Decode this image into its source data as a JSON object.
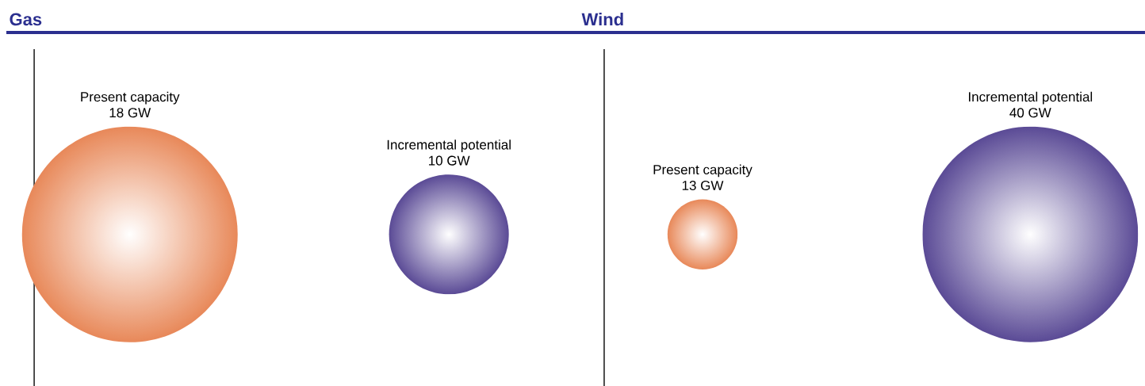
{
  "chart_data": [
    {
      "type": "other",
      "title": "Gas",
      "categories": [
        "Present capacity",
        "Incremental potential"
      ],
      "values": [
        18,
        10
      ],
      "value_labels": [
        "18 GW",
        "10 GW"
      ],
      "colors": [
        "#e8895a",
        "#5b4b96"
      ]
    },
    {
      "type": "other",
      "title": "Wind",
      "categories": [
        "Present capacity",
        "Incremental potential"
      ],
      "values": [
        13,
        40
      ],
      "value_labels": [
        "13 GW",
        "40 GW"
      ],
      "colors": [
        "#e8895a",
        "#5b4b96"
      ]
    }
  ]
}
